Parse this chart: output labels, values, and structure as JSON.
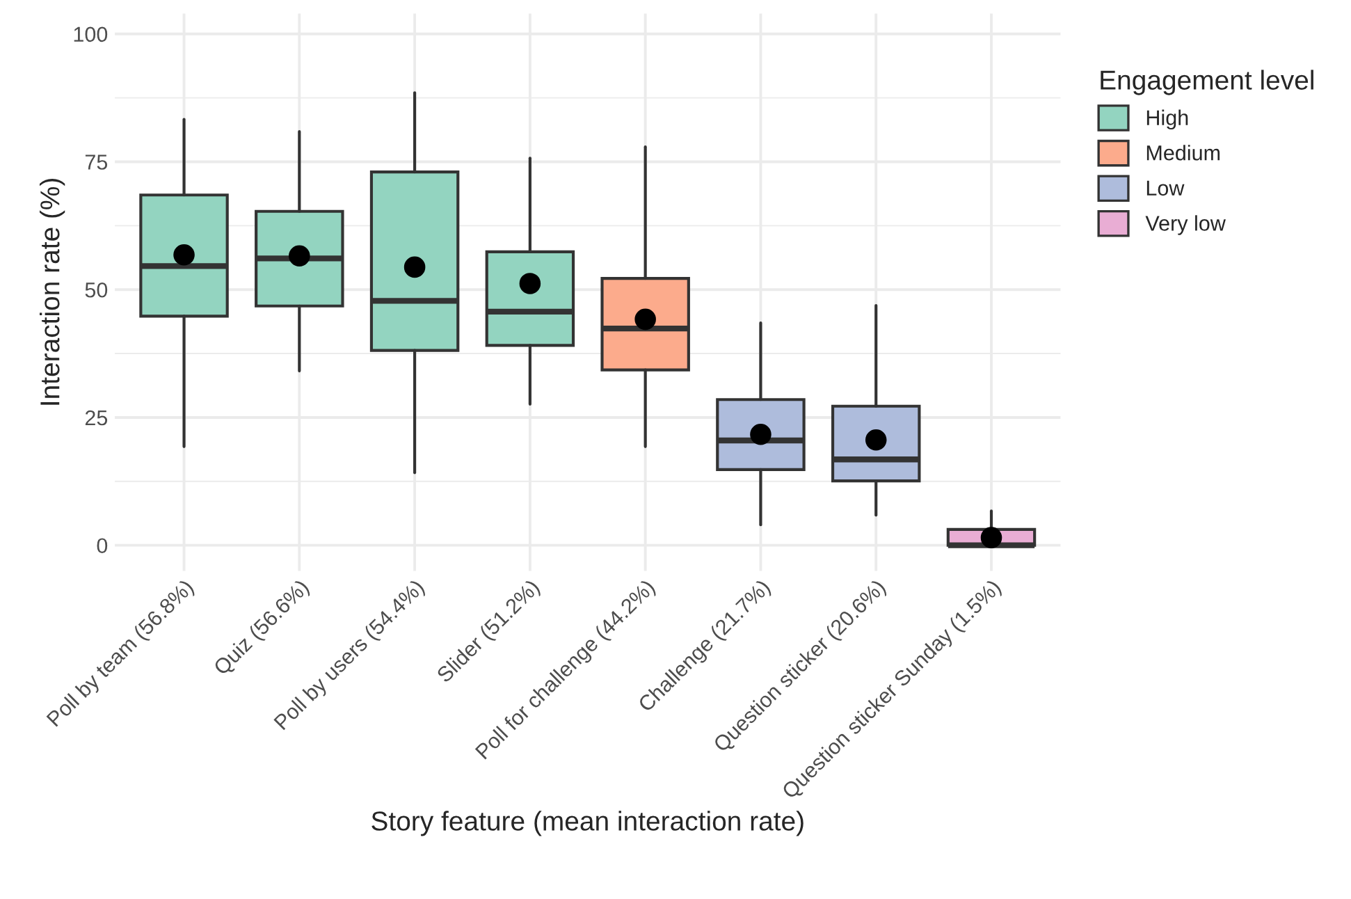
{
  "chart_data": {
    "type": "box",
    "xlabel": "Story feature (mean interaction rate)",
    "ylabel": "Interaction rate (%)",
    "legend_title": "Engagement level",
    "categories": [
      "Poll by team (56.8%)",
      "Quiz (56.6%)",
      "Poll by users (54.4%)",
      "Slider (51.2%)",
      "Poll for challenge (44.2%)",
      "Challenge (21.7%)",
      "Question sticker (20.6%)",
      "Question sticker Sunday (1.5%)"
    ],
    "series": [
      {
        "name": "High",
        "color": "#93d4c0",
        "boxes": [
          {
            "low": 19.3,
            "q1": 44.8,
            "median": 54.6,
            "q3": 68.5,
            "high": 83.3,
            "mean": 56.8
          },
          {
            "low": 34.1,
            "q1": 46.8,
            "median": 56.1,
            "q3": 65.3,
            "high": 80.9,
            "mean": 56.6
          },
          {
            "low": 14.2,
            "q1": 38.1,
            "median": 47.8,
            "q3": 73.0,
            "high": 88.5,
            "mean": 54.4
          },
          {
            "low": 27.6,
            "q1": 39.1,
            "median": 45.7,
            "q3": 57.4,
            "high": 75.7,
            "mean": 51.2
          },
          null,
          null,
          null,
          null
        ]
      },
      {
        "name": "Medium",
        "color": "#fcab8c",
        "boxes": [
          null,
          null,
          null,
          null,
          {
            "low": 19.3,
            "q1": 34.3,
            "median": 42.4,
            "q3": 52.2,
            "high": 77.9,
            "mean": 44.2
          },
          null,
          null,
          null
        ]
      },
      {
        "name": "Low",
        "color": "#aebcdc",
        "boxes": [
          null,
          null,
          null,
          null,
          null,
          {
            "low": 4.0,
            "q1": 14.8,
            "median": 20.5,
            "q3": 28.5,
            "high": 43.5,
            "mean": 21.7
          },
          {
            "low": 5.9,
            "q1": 12.6,
            "median": 16.8,
            "q3": 27.2,
            "high": 46.9,
            "mean": 20.6
          },
          null
        ]
      },
      {
        "name": "Very low",
        "color": "#e9add4",
        "boxes": [
          null,
          null,
          null,
          null,
          null,
          null,
          null,
          {
            "low": 0,
            "q1": 0,
            "median": 0,
            "q3": 3.1,
            "high": 6.7,
            "mean": 1.5
          }
        ]
      }
    ],
    "ylim": [
      -5,
      104
    ],
    "yticks": [
      0,
      {
        "value": 12.5,
        "label": null
      },
      25,
      {
        "value": 37.5,
        "label": null
      },
      50,
      {
        "value": 62.5,
        "label": null
      },
      75,
      {
        "value": 87.5,
        "label": null
      },
      100
    ],
    "grid": true,
    "legend": "right"
  }
}
